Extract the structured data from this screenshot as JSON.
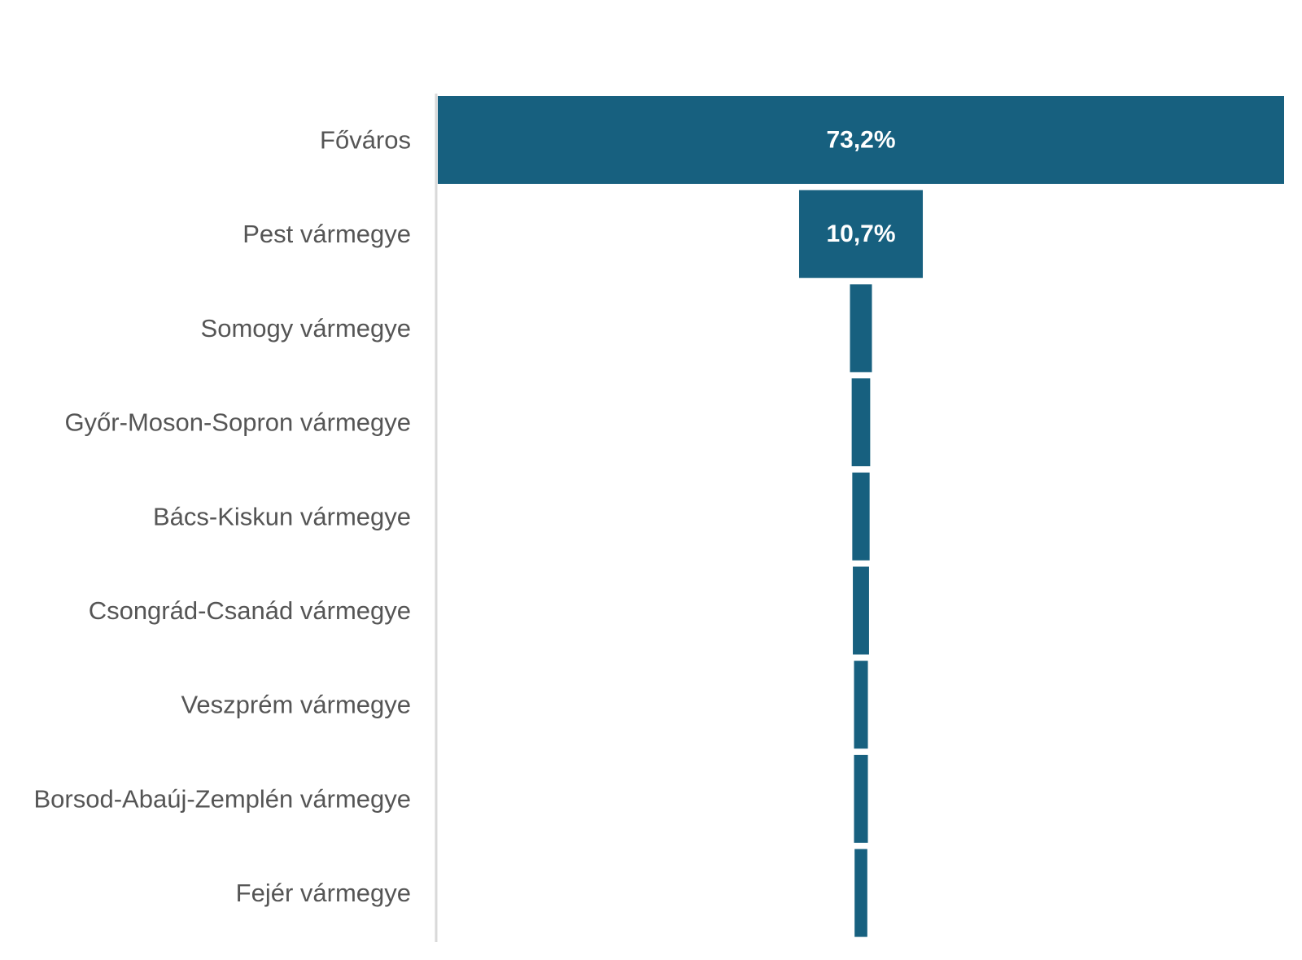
{
  "chart_data": {
    "type": "bar",
    "subtype": "funnel",
    "orientation": "horizontal",
    "categories": [
      "Főváros",
      "Pest vármegye",
      "Somogy vármegye",
      "Győr-Moson-Sopron vármegye",
      "Bács-Kiskun vármegye",
      "Csongrád-Csanád vármegye",
      "Veszprém vármegye",
      "Borsod-Abaúj-Zemplén vármegye",
      "Fejér vármegye"
    ],
    "values": [
      73.2,
      10.7,
      1.9,
      1.6,
      1.5,
      1.4,
      1.2,
      1.2,
      1.1
    ],
    "data_labels": [
      "73,2%",
      "10,7%",
      null,
      null,
      null,
      null,
      null,
      null,
      null
    ],
    "unit": "%",
    "bar_color": "#17607F",
    "label_color": "#555555",
    "axis_color": "#D9D9D9",
    "title": "",
    "xlabel": "",
    "ylabel": "",
    "grid": false,
    "legend": "none"
  }
}
